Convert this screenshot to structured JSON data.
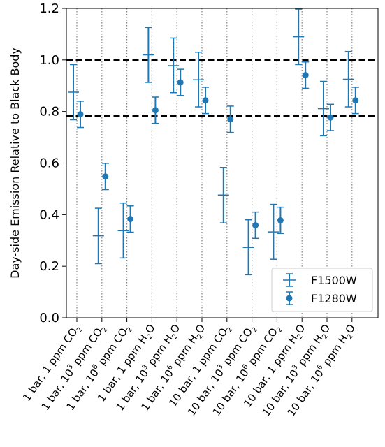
{
  "chart_data": {
    "type": "scatter",
    "title": "",
    "ylabel": "Day-side Emission Relative to Black Body",
    "xlabel": "",
    "ylim": [
      0.0,
      1.2
    ],
    "yticks": [
      "0.0",
      "0.2",
      "0.4",
      "0.6",
      "0.8",
      "1.0",
      "1.2"
    ],
    "categories": [
      {
        "pre": "1 bar, 1 ppm CO",
        "sup": "",
        "sub": "2",
        "post": ""
      },
      {
        "pre": "1 bar, 10",
        "sup": "3",
        "sub": "2",
        "post": " ppm CO"
      },
      {
        "pre": "1 bar, 10",
        "sup": "6",
        "sub": "2",
        "post": " ppm CO"
      },
      {
        "pre": "1 bar, 1 ppm H",
        "sup": "",
        "sub": "2",
        "post": "O"
      },
      {
        "pre": "1 bar, 10",
        "sup": "3",
        "sub": "2",
        "post": " ppm H"
      },
      {
        "pre": "1 bar, 10",
        "sup": "6",
        "sub": "2",
        "post": " ppm H"
      },
      {
        "pre": "10 bar, 1 ppm CO",
        "sup": "",
        "sub": "2",
        "post": ""
      },
      {
        "pre": "10 bar, 10",
        "sup": "3",
        "sub": "2",
        "post": " ppm CO"
      },
      {
        "pre": "10 bar, 10",
        "sup": "6",
        "sub": "2",
        "post": " ppm CO"
      },
      {
        "pre": "10 bar, 1 ppm H",
        "sup": "",
        "sub": "2",
        "post": "O"
      },
      {
        "pre": "10 bar, 10",
        "sup": "3",
        "sub": "2",
        "post": " ppm H"
      },
      {
        "pre": "10 bar, 10",
        "sup": "6",
        "sub": "2",
        "post": " ppm H"
      }
    ],
    "category_text": [
      "1 bar, 1 ppm CO₂",
      "1 bar, 10³ ppm CO₂",
      "1 bar, 10⁶ ppm CO₂",
      "1 bar, 1 ppm H₂O",
      "1 bar, 10³ ppm H₂O",
      "1 bar, 10⁶ ppm H₂O",
      "10 bar, 1 ppm CO₂",
      "10 bar, 10³ ppm CO₂",
      "10 bar, 10⁶ ppm CO₂",
      "10 bar, 1 ppm H₂O",
      "10 bar, 10³ ppm H₂O",
      "10 bar, 10⁶ ppm H₂O"
    ],
    "series": [
      {
        "name": "F1500W",
        "marker": "tick",
        "values": [
          0.875,
          0.318,
          0.338,
          1.02,
          0.978,
          0.923,
          0.476,
          0.273,
          0.333,
          1.09,
          0.811,
          0.925
        ],
        "err_low": [
          0.768,
          0.21,
          0.232,
          0.913,
          0.873,
          0.818,
          0.368,
          0.167,
          0.227,
          0.982,
          0.706,
          0.818
        ],
        "err_high": [
          0.982,
          0.425,
          0.445,
          1.126,
          1.085,
          1.03,
          0.583,
          0.38,
          0.44,
          1.197,
          0.917,
          1.033
        ]
      },
      {
        "name": "F1280W",
        "marker": "circle",
        "values": [
          0.789,
          0.548,
          0.383,
          0.805,
          0.913,
          0.843,
          0.77,
          0.359,
          0.378,
          0.941,
          0.777,
          0.843
        ],
        "err_low": [
          0.738,
          0.497,
          0.332,
          0.754,
          0.862,
          0.792,
          0.719,
          0.308,
          0.327,
          0.89,
          0.726,
          0.792
        ],
        "err_high": [
          0.84,
          0.599,
          0.434,
          0.856,
          0.964,
          0.894,
          0.821,
          0.41,
          0.429,
          0.992,
          0.828,
          0.894
        ]
      }
    ],
    "hlines": [
      1.0,
      0.783
    ],
    "grid": "vertical dotted",
    "legend": "bottom-right",
    "colors": {
      "series": "#1f77b4",
      "hline": "#000000",
      "grid": "#808080"
    }
  }
}
